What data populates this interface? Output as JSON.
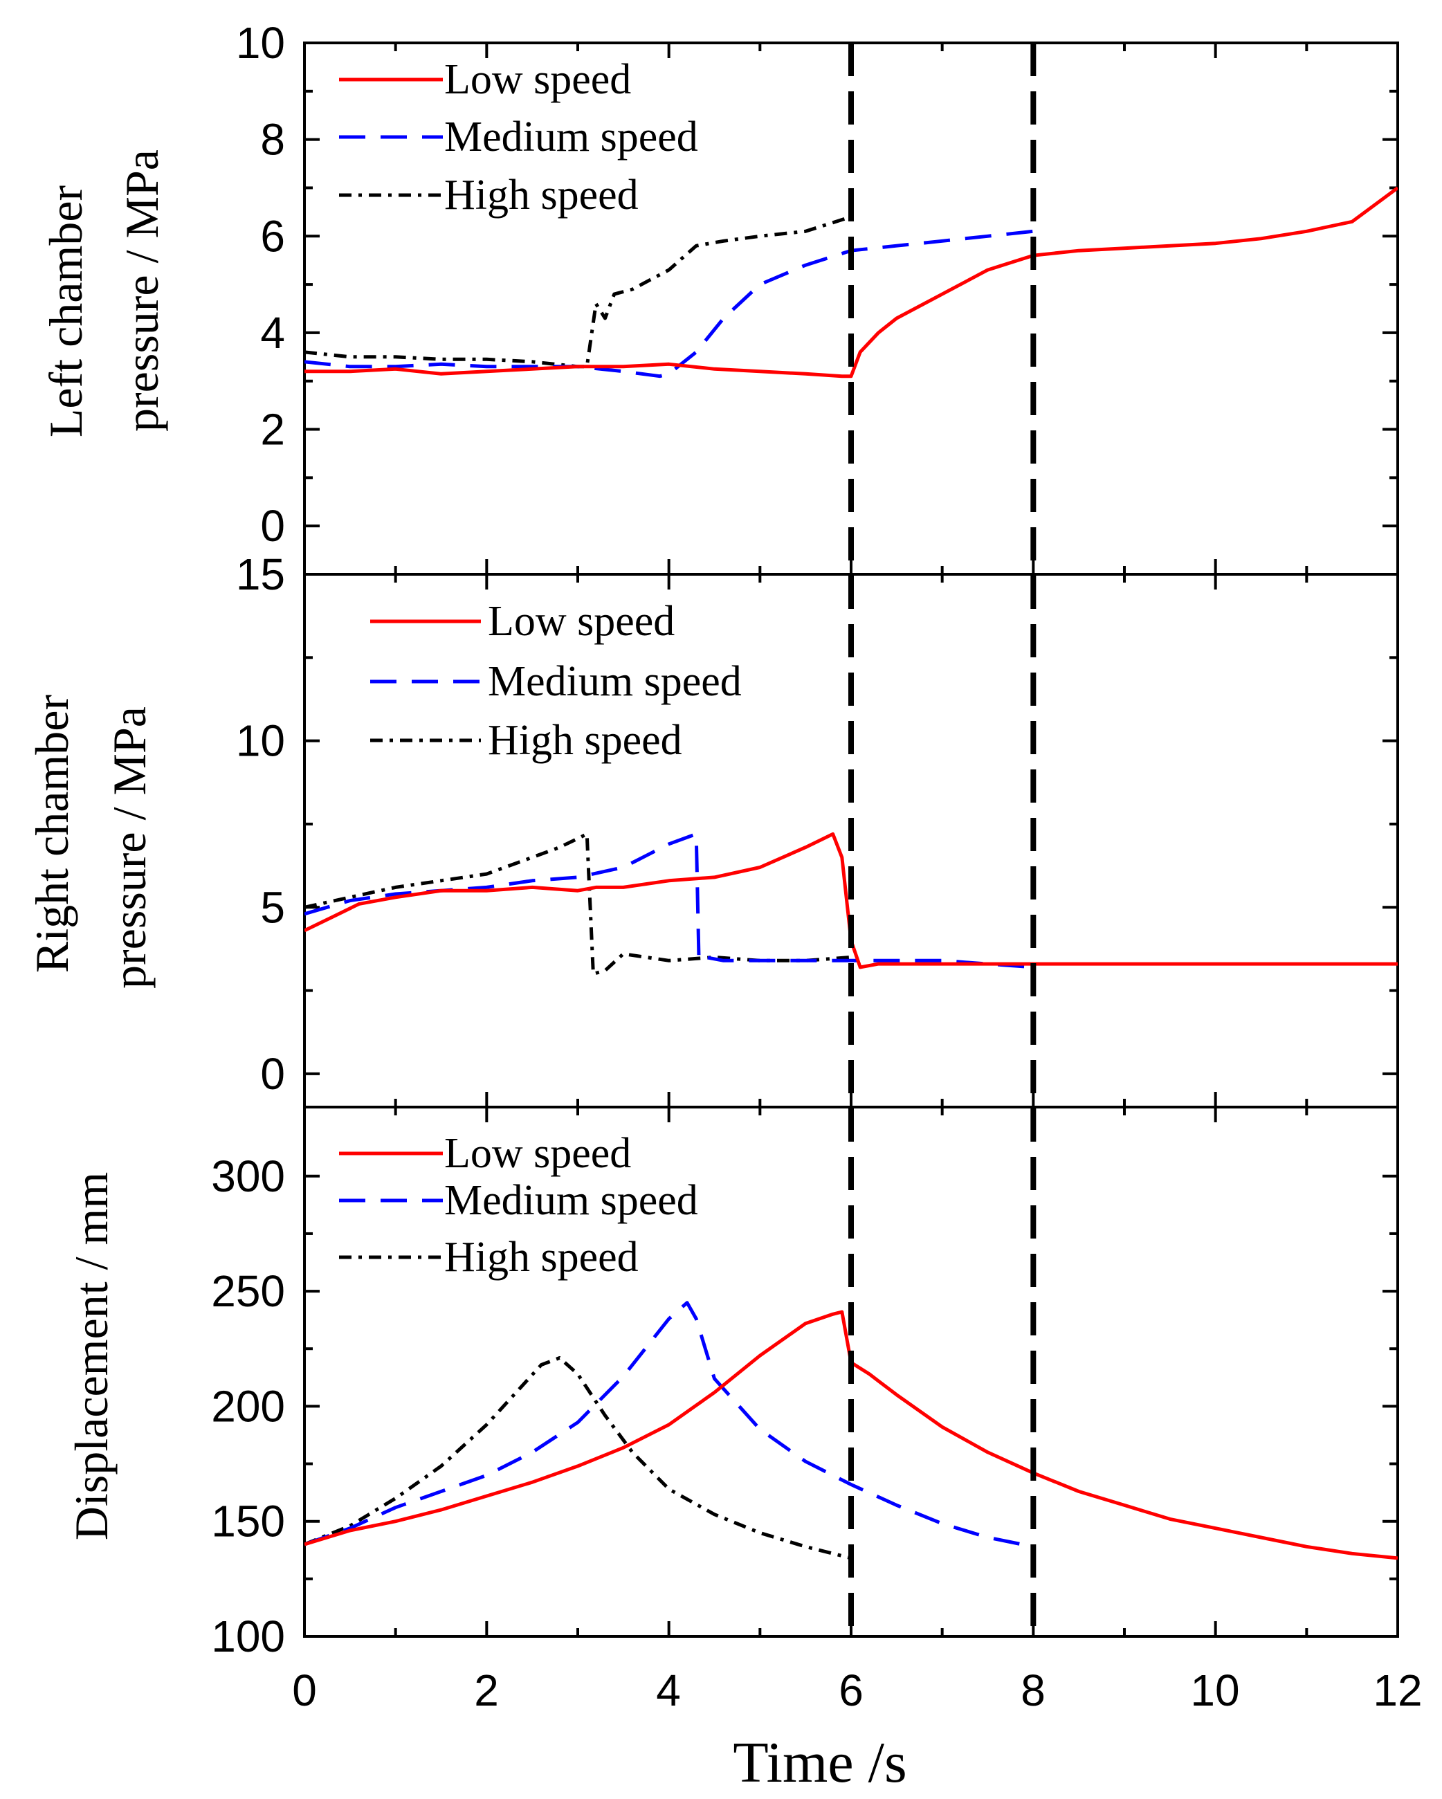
{
  "chart_data": [
    {
      "type": "line",
      "panel": "top",
      "ylabel_line1": "Left chamber",
      "ylabel_line2": "pressure / MPa",
      "ylim": [
        -1,
        10
      ],
      "yticks": [
        0,
        2,
        4,
        6,
        8,
        10
      ],
      "xlim": [
        0,
        12
      ],
      "legend_position": "top-left",
      "series": [
        {
          "name": "Low speed",
          "color": "#ff0000",
          "style": "solid",
          "x": [
            0,
            0.5,
            1,
            1.5,
            2,
            2.5,
            3,
            3.5,
            4,
            4.5,
            5,
            5.5,
            5.9,
            6.0,
            6.1,
            6.3,
            6.5,
            7,
            7.5,
            8,
            8.5,
            9,
            9.5,
            10,
            10.5,
            11,
            11.5,
            12
          ],
          "y": [
            3.2,
            3.2,
            3.25,
            3.15,
            3.2,
            3.25,
            3.3,
            3.3,
            3.35,
            3.25,
            3.2,
            3.15,
            3.1,
            3.1,
            3.6,
            4.0,
            4.3,
            4.8,
            5.3,
            5.6,
            5.7,
            5.75,
            5.8,
            5.85,
            5.95,
            6.1,
            6.3,
            7.0
          ]
        },
        {
          "name": "Medium speed",
          "color": "#0000ff",
          "style": "dashed",
          "x": [
            0,
            0.5,
            1,
            1.5,
            2,
            2.5,
            3,
            3.5,
            3.9,
            4.0,
            4.3,
            4.6,
            5.0,
            5.5,
            6.0,
            6.5,
            7,
            7.5,
            8
          ],
          "y": [
            3.4,
            3.3,
            3.3,
            3.35,
            3.3,
            3.3,
            3.3,
            3.2,
            3.1,
            3.15,
            3.6,
            4.3,
            5.0,
            5.4,
            5.7,
            5.8,
            5.9,
            6.0,
            6.1
          ]
        },
        {
          "name": "High speed",
          "color": "#000000",
          "style": "dashdot",
          "x": [
            0,
            0.5,
            1,
            1.5,
            2,
            2.5,
            3,
            3.1,
            3.2,
            3.3,
            3.4,
            3.6,
            3.8,
            4.0,
            4.3,
            4.6,
            5.0,
            5.5,
            6.0
          ],
          "y": [
            3.6,
            3.5,
            3.5,
            3.45,
            3.45,
            3.4,
            3.3,
            3.3,
            4.6,
            4.3,
            4.8,
            4.9,
            5.1,
            5.3,
            5.8,
            5.9,
            6.0,
            6.1,
            6.4
          ]
        }
      ]
    },
    {
      "type": "line",
      "panel": "middle",
      "ylabel_line1": "Right chamber",
      "ylabel_line2": "pressure / MPa",
      "ylim": [
        -1,
        15
      ],
      "yticks": [
        0,
        5,
        10,
        15
      ],
      "xlim": [
        0,
        12
      ],
      "legend_position": "top-left",
      "series": [
        {
          "name": "Low speed",
          "color": "#ff0000",
          "style": "solid",
          "x": [
            0,
            0.3,
            0.6,
            1,
            1.5,
            2,
            2.5,
            3,
            3.2,
            3.5,
            4,
            4.5,
            5,
            5.5,
            5.8,
            5.9,
            6.0,
            6.1,
            6.3,
            7,
            8,
            9,
            10,
            11,
            12
          ],
          "y": [
            4.3,
            4.7,
            5.1,
            5.3,
            5.5,
            5.5,
            5.6,
            5.5,
            5.6,
            5.6,
            5.8,
            5.9,
            6.2,
            6.8,
            7.2,
            6.5,
            4.0,
            3.2,
            3.3,
            3.3,
            3.3,
            3.3,
            3.3,
            3.3,
            3.3
          ]
        },
        {
          "name": "Medium speed",
          "color": "#0000ff",
          "style": "dashed",
          "x": [
            0,
            0.5,
            1,
            1.5,
            2,
            2.5,
            3,
            3.5,
            4.0,
            4.3,
            4.33,
            4.4,
            4.6,
            5.0,
            5.5,
            6.0,
            6.5,
            7.0,
            7.5,
            8.0
          ],
          "y": [
            4.8,
            5.2,
            5.4,
            5.5,
            5.6,
            5.8,
            5.9,
            6.2,
            6.9,
            7.2,
            3.4,
            3.5,
            3.4,
            3.4,
            3.4,
            3.4,
            3.4,
            3.4,
            3.3,
            3.2
          ]
        },
        {
          "name": "High speed",
          "color": "#000000",
          "style": "dashdot",
          "x": [
            0,
            0.5,
            1,
            1.5,
            2,
            2.5,
            2.8,
            3.1,
            3.17,
            3.3,
            3.5,
            4.0,
            4.5,
            5.0,
            5.5,
            6.0
          ],
          "y": [
            5.0,
            5.3,
            5.6,
            5.8,
            6.0,
            6.5,
            6.8,
            7.2,
            3.0,
            3.1,
            3.6,
            3.4,
            3.5,
            3.4,
            3.4,
            3.5
          ]
        }
      ]
    },
    {
      "type": "line",
      "panel": "bottom",
      "ylabel": "Displacement / mm",
      "xlabel": "Time /s",
      "ylim": [
        100,
        330
      ],
      "yticks": [
        100,
        150,
        200,
        250,
        300
      ],
      "xlim": [
        0,
        12
      ],
      "xticks": [
        0,
        2,
        4,
        6,
        8,
        10,
        12
      ],
      "legend_position": "top-left",
      "series": [
        {
          "name": "Low speed",
          "color": "#ff0000",
          "style": "solid",
          "x": [
            0,
            0.5,
            1,
            1.5,
            2,
            2.5,
            3,
            3.5,
            4,
            4.5,
            5,
            5.5,
            5.8,
            5.9,
            6.0,
            6.2,
            6.5,
            7,
            7.5,
            8,
            8.5,
            9,
            9.5,
            10,
            10.5,
            11,
            11.5,
            12
          ],
          "y": [
            140,
            146,
            150,
            155,
            161,
            167,
            174,
            182,
            192,
            206,
            222,
            236,
            240,
            241,
            219,
            214,
            205,
            191,
            180,
            171,
            163,
            157,
            151,
            147,
            143,
            139,
            136,
            134
          ]
        },
        {
          "name": "Medium speed",
          "color": "#0000ff",
          "style": "dashed",
          "x": [
            0,
            0.5,
            1,
            1.5,
            2,
            2.5,
            3,
            3.5,
            3.8,
            4.0,
            4.2,
            4.3,
            4.5,
            5.0,
            5.5,
            6.0,
            6.5,
            7.0,
            7.5,
            8.0
          ],
          "y": [
            140,
            147,
            156,
            163,
            170,
            180,
            193,
            213,
            228,
            238,
            245,
            238,
            212,
            190,
            176,
            166,
            157,
            149,
            143,
            139
          ]
        },
        {
          "name": "High speed",
          "color": "#000000",
          "style": "dashdot",
          "x": [
            0,
            0.5,
            1,
            1.5,
            2,
            2.3,
            2.6,
            2.8,
            3.0,
            3.3,
            3.6,
            4.0,
            4.5,
            5.0,
            5.5,
            6.0
          ],
          "y": [
            140,
            148,
            160,
            174,
            192,
            205,
            218,
            221,
            214,
            196,
            180,
            164,
            153,
            145,
            139,
            134
          ]
        }
      ]
    }
  ],
  "markers": {
    "vertical_dashed_lines_at_x": [
      6,
      8
    ],
    "line_color": "#000000"
  }
}
